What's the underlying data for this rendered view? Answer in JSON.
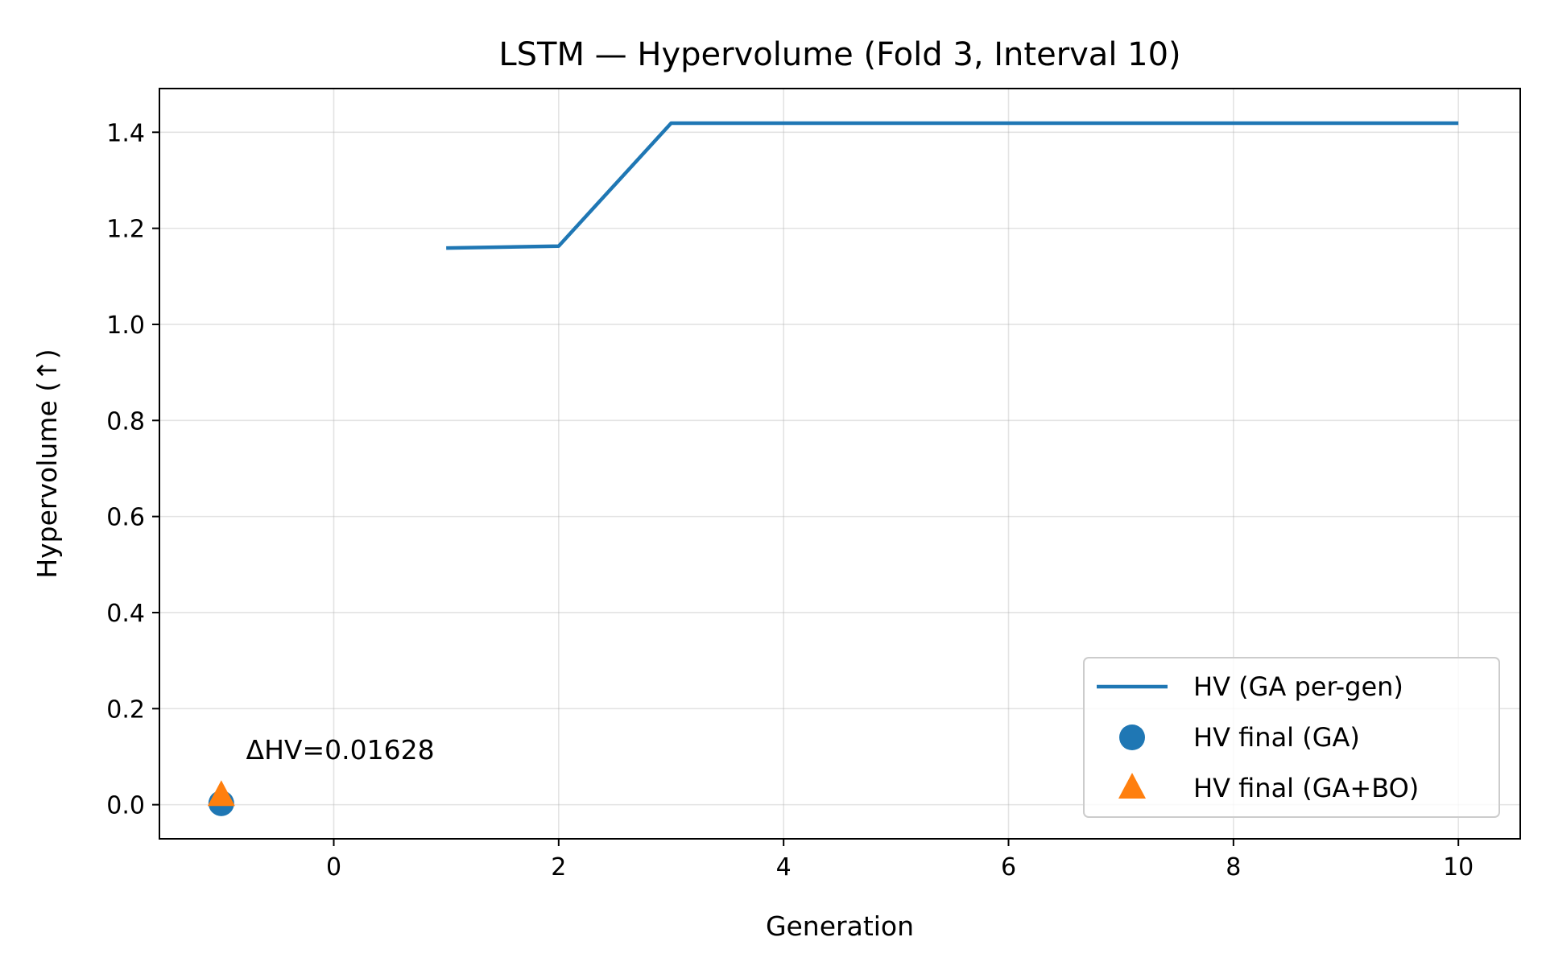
{
  "chart_data": {
    "type": "line",
    "title": "LSTM — Hypervolume (Fold 3, Interval 10)",
    "xlabel": "Generation",
    "ylabel": "Hypervolume (↑)",
    "xlim": [
      -1.55,
      10.55
    ],
    "ylim": [
      -0.071,
      1.491
    ],
    "x_ticks": [
      0,
      2,
      4,
      6,
      8,
      10
    ],
    "y_ticks": [
      0.0,
      0.2,
      0.4,
      0.6,
      0.8,
      1.0,
      1.2,
      1.4
    ],
    "x_tick_labels": [
      "0",
      "2",
      "4",
      "6",
      "8",
      "10"
    ],
    "y_tick_labels": [
      "0.0",
      "0.2",
      "0.4",
      "0.6",
      "0.8",
      "1.0",
      "1.2",
      "1.4"
    ],
    "grid": true,
    "legend_position": "lower-right",
    "series": [
      {
        "name": "HV (GA per-gen)",
        "kind": "line",
        "color": "#1f77b4",
        "x": [
          1,
          2,
          3,
          4,
          5,
          6,
          7,
          8,
          9,
          10
        ],
        "y": [
          1.159,
          1.163,
          1.419,
          1.419,
          1.419,
          1.419,
          1.419,
          1.419,
          1.419,
          1.419
        ]
      },
      {
        "name": "HV final (GA)",
        "kind": "scatter",
        "marker": "circle",
        "color": "#1f77b4",
        "x": [
          -1
        ],
        "y": [
          0.003
        ]
      },
      {
        "name": "HV final (GA+BO)",
        "kind": "scatter",
        "marker": "triangle",
        "color": "#ff7f0e",
        "x": [
          -1
        ],
        "y": [
          0.019
        ]
      }
    ],
    "annotations": [
      {
        "text": "ΔHV=0.01628",
        "x": -0.78,
        "y": 0.095
      }
    ]
  }
}
